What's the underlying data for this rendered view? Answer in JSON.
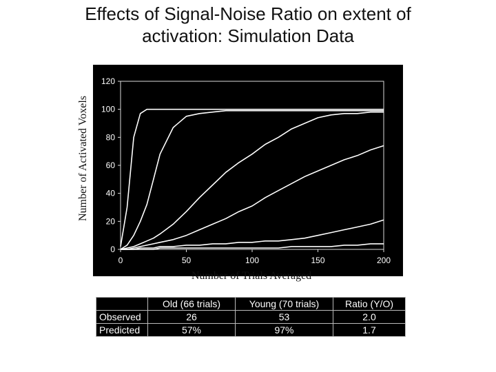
{
  "title": "Effects of Signal-Noise Ratio on extent of activation: Simulation Data",
  "chart_data": {
    "type": "line",
    "title": "Effects of Signal-Noise Ratio on extent of activation: Simulation Data",
    "xlabel": "Number of Trials Averaged",
    "ylabel": "Number of Activated Voxels",
    "xlim": [
      0,
      200
    ],
    "ylim": [
      0,
      120
    ],
    "xticks": [
      0,
      50,
      100,
      150,
      200
    ],
    "yticks": [
      0,
      20,
      40,
      60,
      80,
      100,
      120
    ],
    "grid": false,
    "x": [
      0,
      5,
      10,
      15,
      20,
      25,
      30,
      40,
      50,
      60,
      70,
      80,
      90,
      100,
      110,
      120,
      130,
      140,
      150,
      160,
      170,
      180,
      190,
      200
    ],
    "series": [
      {
        "values": [
          2,
          30,
          80,
          97,
          100,
          100,
          100,
          100,
          100,
          100,
          100,
          100,
          100,
          100,
          100,
          100,
          100,
          100,
          100,
          100,
          100,
          100,
          100,
          100
        ]
      },
      {
        "values": [
          0,
          3,
          10,
          20,
          32,
          50,
          68,
          87,
          95,
          97,
          98,
          99,
          99,
          99,
          99,
          99,
          99,
          99,
          99,
          99,
          99,
          99,
          99,
          99
        ]
      },
      {
        "values": [
          0,
          1,
          2,
          4,
          6,
          8,
          11,
          18,
          27,
          37,
          46,
          55,
          62,
          68,
          75,
          80,
          86,
          90,
          94,
          96,
          97,
          97,
          98,
          98
        ]
      },
      {
        "values": [
          0,
          0,
          1,
          2,
          3,
          4,
          5,
          7,
          10,
          14,
          18,
          22,
          27,
          31,
          37,
          42,
          47,
          52,
          56,
          60,
          64,
          67,
          71,
          74
        ]
      },
      {
        "values": [
          0,
          0,
          0,
          1,
          1,
          1,
          2,
          2,
          3,
          3,
          4,
          4,
          5,
          5,
          6,
          6,
          7,
          8,
          10,
          12,
          14,
          16,
          18,
          21
        ]
      },
      {
        "values": [
          0,
          0,
          0,
          0,
          0,
          0,
          1,
          1,
          1,
          1,
          1,
          1,
          1,
          1,
          1,
          1,
          2,
          2,
          2,
          2,
          3,
          3,
          4,
          4
        ]
      }
    ]
  },
  "table": {
    "headers": [
      "",
      "Old (66 trials)",
      "Young (70 trials)",
      "Ratio (Y/O)"
    ],
    "rows": [
      [
        "Observed",
        "26",
        "53",
        "2.0"
      ],
      [
        "Predicted",
        "57%",
        "97%",
        "1.7"
      ]
    ]
  },
  "colors": {
    "plot_bg": "#000000",
    "line": "#ffffff",
    "axis": "#dddddd"
  }
}
